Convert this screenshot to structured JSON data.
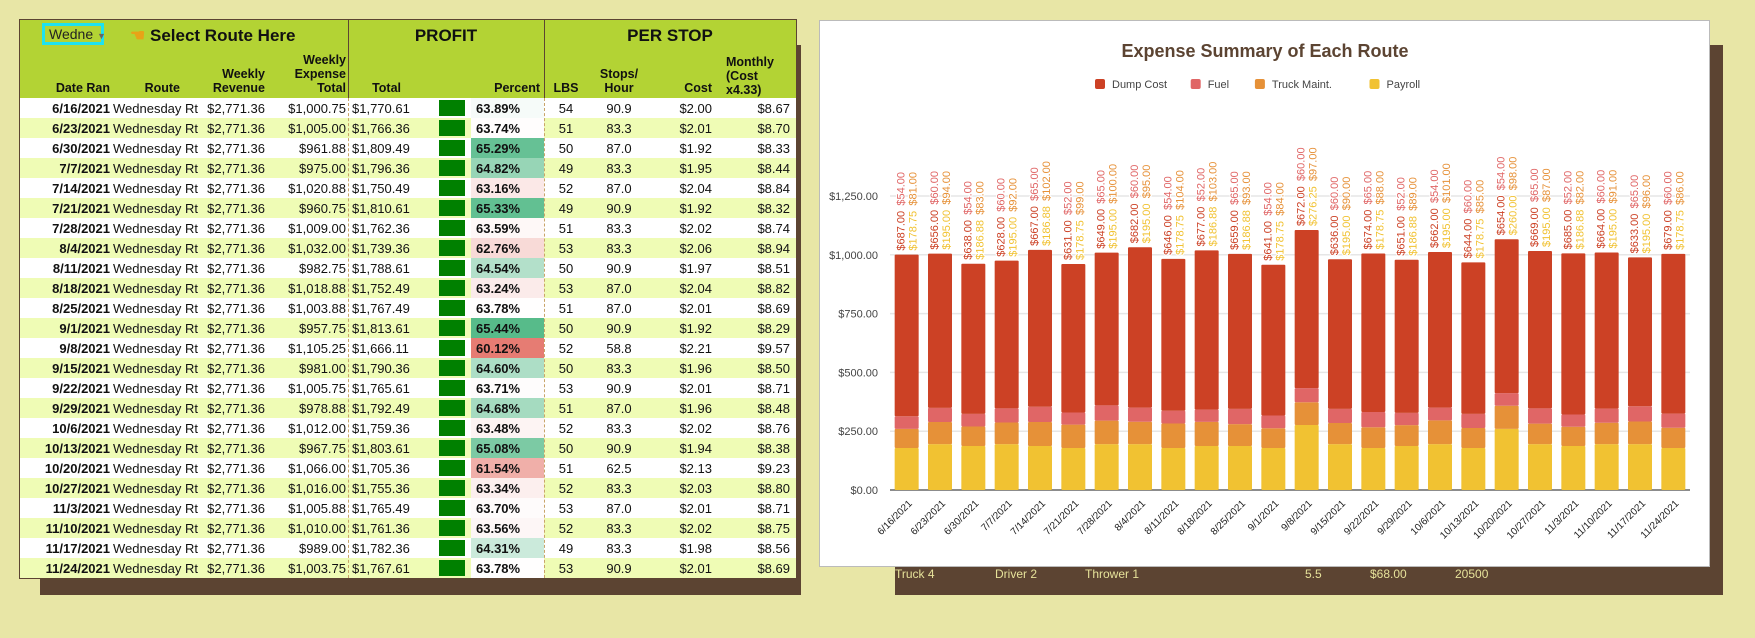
{
  "sheet": {
    "dropdown": "Wedne",
    "select_label": "Select Route Here",
    "profit_title": "PROFIT",
    "per_stop_title": "PER STOP",
    "headers": {
      "date": "Date Ran",
      "route": "Route",
      "revenue": "Weekly Revenue",
      "expense": "Weekly Expense Total",
      "total": "Total",
      "percent": "Percent",
      "lbs": "LBS",
      "stops": "Stops/ Hour",
      "cost": "Cost",
      "monthly": "Monthly (Cost x4.33)"
    },
    "rows": [
      [
        "6/16/2021",
        "Wednesday Rt",
        "$2,771.36",
        "$1,000.75",
        "$1,770.61",
        "63.89%",
        "54",
        "90.9",
        "$2.00",
        "$8.67"
      ],
      [
        "6/23/2021",
        "Wednesday Rt",
        "$2,771.36",
        "$1,005.00",
        "$1,766.36",
        "63.74%",
        "51",
        "83.3",
        "$2.01",
        "$8.70"
      ],
      [
        "6/30/2021",
        "Wednesday Rt",
        "$2,771.36",
        "$961.88",
        "$1,809.49",
        "65.29%",
        "50",
        "87.0",
        "$1.92",
        "$8.33"
      ],
      [
        "7/7/2021",
        "Wednesday Rt",
        "$2,771.36",
        "$975.00",
        "$1,796.36",
        "64.82%",
        "49",
        "83.3",
        "$1.95",
        "$8.44"
      ],
      [
        "7/14/2021",
        "Wednesday Rt",
        "$2,771.36",
        "$1,020.88",
        "$1,750.49",
        "63.16%",
        "52",
        "87.0",
        "$2.04",
        "$8.84"
      ],
      [
        "7/21/2021",
        "Wednesday Rt",
        "$2,771.36",
        "$960.75",
        "$1,810.61",
        "65.33%",
        "49",
        "90.9",
        "$1.92",
        "$8.32"
      ],
      [
        "7/28/2021",
        "Wednesday Rt",
        "$2,771.36",
        "$1,009.00",
        "$1,762.36",
        "63.59%",
        "51",
        "83.3",
        "$2.02",
        "$8.74"
      ],
      [
        "8/4/2021",
        "Wednesday Rt",
        "$2,771.36",
        "$1,032.00",
        "$1,739.36",
        "62.76%",
        "53",
        "83.3",
        "$2.06",
        "$8.94"
      ],
      [
        "8/11/2021",
        "Wednesday Rt",
        "$2,771.36",
        "$982.75",
        "$1,788.61",
        "64.54%",
        "50",
        "90.9",
        "$1.97",
        "$8.51"
      ],
      [
        "8/18/2021",
        "Wednesday Rt",
        "$2,771.36",
        "$1,018.88",
        "$1,752.49",
        "63.24%",
        "53",
        "87.0",
        "$2.04",
        "$8.82"
      ],
      [
        "8/25/2021",
        "Wednesday Rt",
        "$2,771.36",
        "$1,003.88",
        "$1,767.49",
        "63.78%",
        "51",
        "87.0",
        "$2.01",
        "$8.69"
      ],
      [
        "9/1/2021",
        "Wednesday Rt",
        "$2,771.36",
        "$957.75",
        "$1,813.61",
        "65.44%",
        "50",
        "90.9",
        "$1.92",
        "$8.29"
      ],
      [
        "9/8/2021",
        "Wednesday Rt",
        "$2,771.36",
        "$1,105.25",
        "$1,666.11",
        "60.12%",
        "52",
        "58.8",
        "$2.21",
        "$9.57"
      ],
      [
        "9/15/2021",
        "Wednesday Rt",
        "$2,771.36",
        "$981.00",
        "$1,790.36",
        "64.60%",
        "50",
        "83.3",
        "$1.96",
        "$8.50"
      ],
      [
        "9/22/2021",
        "Wednesday Rt",
        "$2,771.36",
        "$1,005.75",
        "$1,765.61",
        "63.71%",
        "53",
        "90.9",
        "$2.01",
        "$8.71"
      ],
      [
        "9/29/2021",
        "Wednesday Rt",
        "$2,771.36",
        "$978.88",
        "$1,792.49",
        "64.68%",
        "51",
        "87.0",
        "$1.96",
        "$8.48"
      ],
      [
        "10/6/2021",
        "Wednesday Rt",
        "$2,771.36",
        "$1,012.00",
        "$1,759.36",
        "63.48%",
        "52",
        "83.3",
        "$2.02",
        "$8.76"
      ],
      [
        "10/13/2021",
        "Wednesday Rt",
        "$2,771.36",
        "$967.75",
        "$1,803.61",
        "65.08%",
        "50",
        "90.9",
        "$1.94",
        "$8.38"
      ],
      [
        "10/20/2021",
        "Wednesday Rt",
        "$2,771.36",
        "$1,066.00",
        "$1,705.36",
        "61.54%",
        "51",
        "62.5",
        "$2.13",
        "$9.23"
      ],
      [
        "10/27/2021",
        "Wednesday Rt",
        "$2,771.36",
        "$1,016.00",
        "$1,755.36",
        "63.34%",
        "52",
        "83.3",
        "$2.03",
        "$8.80"
      ],
      [
        "11/3/2021",
        "Wednesday Rt",
        "$2,771.36",
        "$1,005.88",
        "$1,765.49",
        "63.70%",
        "53",
        "87.0",
        "$2.01",
        "$8.71"
      ],
      [
        "11/10/2021",
        "Wednesday Rt",
        "$2,771.36",
        "$1,010.00",
        "$1,761.36",
        "63.56%",
        "52",
        "83.3",
        "$2.02",
        "$8.75"
      ],
      [
        "11/17/2021",
        "Wednesday Rt",
        "$2,771.36",
        "$989.00",
        "$1,782.36",
        "64.31%",
        "49",
        "83.3",
        "$1.98",
        "$8.56"
      ],
      [
        "11/24/2021",
        "Wednesday Rt",
        "$2,771.36",
        "$1,003.75",
        "$1,767.61",
        "63.78%",
        "53",
        "90.9",
        "$2.01",
        "$8.69"
      ]
    ],
    "colors": {
      "header_bg": "#b3d334",
      "bar": "#008000",
      "pct_high": "#57bb8a",
      "pct_low": "#e67c73"
    }
  },
  "under_row": [
    "Truck 4",
    "Driver 2",
    "Thrower 1",
    "5.5",
    "$68.00",
    "20500"
  ],
  "chart_data": {
    "type": "bar",
    "stacked": true,
    "title": "Expense Summary of Each Route",
    "categories": [
      "6/16/2021",
      "6/23/2021",
      "6/30/2021",
      "7/7/2021",
      "7/14/2021",
      "7/21/2021",
      "7/28/2021",
      "8/4/2021",
      "8/11/2021",
      "8/18/2021",
      "8/25/2021",
      "9/1/2021",
      "9/8/2021",
      "9/15/2021",
      "9/22/2021",
      "9/29/2021",
      "10/6/2021",
      "10/13/2021",
      "10/20/2021",
      "10/27/2021",
      "11/3/2021",
      "11/10/2021",
      "11/17/2021",
      "11/24/2021"
    ],
    "series": [
      {
        "name": "Payroll",
        "color": "#f1c232",
        "values": [
          178.75,
          195,
          186.88,
          195,
          186.88,
          178.75,
          195,
          195,
          178.75,
          186.88,
          186.88,
          178.75,
          276.25,
          195,
          178.75,
          186.88,
          195,
          178.75,
          260,
          195,
          186.88,
          195,
          195,
          178.75
        ]
      },
      {
        "name": "Truck Maint.",
        "color": "#e69138",
        "values": [
          81,
          94,
          83,
          92,
          102,
          99,
          100,
          95,
          104,
          103,
          93,
          84,
          97,
          90,
          88,
          89,
          101,
          85,
          98,
          87,
          82,
          91,
          96,
          86
        ]
      },
      {
        "name": "Fuel",
        "color": "#e06666",
        "values": [
          54,
          60,
          54,
          60,
          65,
          52,
          65,
          60,
          54,
          52,
          65,
          54,
          60,
          60,
          65,
          52,
          54,
          60,
          54,
          65,
          52,
          60,
          65,
          60
        ]
      },
      {
        "name": "Dump Cost",
        "color": "#cc4125",
        "values": [
          687,
          656,
          638,
          628,
          667,
          631,
          649,
          682,
          646,
          677,
          659,
          641,
          672,
          636,
          674,
          651,
          662,
          644,
          654,
          669,
          685,
          664,
          633,
          679
        ]
      }
    ],
    "legend_order": [
      "Dump Cost",
      "Fuel",
      "Truck Maint.",
      "Payroll"
    ],
    "legend_position": "top",
    "y_ticks": [
      "$0.00",
      "$250.00",
      "$500.00",
      "$750.00",
      "$1,000.00",
      "$1,250.00"
    ],
    "ylim": [
      0,
      1250
    ],
    "grid": true,
    "data_labels": true
  }
}
